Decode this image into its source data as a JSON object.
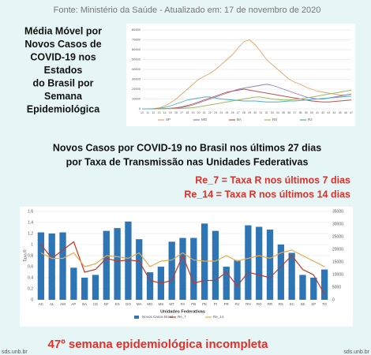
{
  "source": "Fonte: Ministério da Saúde - Atualizado em: 17 de novembro de 2020",
  "left_title": [
    "Média Móvel por",
    "Novos Casos de",
    "COVID-19 nos",
    "Estados",
    "do Brasil por",
    "Semana",
    "Epidemiológica"
  ],
  "middle_title": [
    "Novos Casos por COVID-19 no Brasil nos últimos 27 dias",
    "por Taxa de Transmissão nas Unidades Federativas"
  ],
  "notes": [
    "Re_7 = Taxa R nos últimos 7 dias",
    "Re_14 = Taxa R nos últimos 14 dias"
  ],
  "footer": "47º semana epidemiológica incompleta",
  "site": "sds.unb.br",
  "chart_data": [
    {
      "type": "line",
      "x": [
        10,
        11,
        12,
        13,
        14,
        15,
        16,
        17,
        18,
        19,
        20,
        21,
        22,
        23,
        24,
        25,
        26,
        27,
        28,
        29,
        30,
        31,
        32,
        33,
        34,
        35,
        36,
        37,
        38,
        39,
        40,
        41,
        42,
        43,
        44,
        45,
        46,
        47
      ],
      "xticks": [
        10,
        11,
        12,
        13,
        14,
        15,
        16,
        17,
        18,
        19,
        20,
        21,
        22,
        23,
        24,
        25,
        26,
        27,
        28,
        29,
        30,
        31,
        32,
        33,
        34,
        35,
        36,
        37,
        38,
        39,
        40,
        41,
        42,
        43,
        44,
        45,
        46,
        47
      ],
      "xlim": [
        10,
        47
      ],
      "ylim": [
        0,
        80000
      ],
      "yticks": [
        0,
        10000,
        20000,
        30000,
        40000,
        50000,
        60000,
        70000,
        80000
      ],
      "grid": true,
      "legend": "bottom",
      "series": [
        {
          "name": "SP",
          "color": "#e8a265",
          "values": [
            0,
            0,
            200,
            1000,
            3000,
            6000,
            10000,
            15000,
            20000,
            25000,
            30000,
            33000,
            36000,
            40000,
            45000,
            50000,
            55000,
            62000,
            68000,
            70000,
            65000,
            58000,
            50000,
            45000,
            40000,
            35000,
            30000,
            27000,
            25000,
            22000,
            20000,
            18000,
            17000,
            16000,
            15000,
            14000,
            14000,
            15000
          ]
        },
        {
          "name": "MG",
          "color": "#8e7cc3",
          "values": [
            0,
            0,
            0,
            100,
            300,
            600,
            1000,
            1500,
            2500,
            4000,
            6000,
            8000,
            10000,
            12000,
            14000,
            16000,
            18000,
            20000,
            21000,
            22000,
            23000,
            24000,
            25000,
            24000,
            22000,
            20000,
            18000,
            16000,
            14000,
            12000,
            11000,
            10000,
            10000,
            11000,
            12000,
            13000,
            14000,
            15000
          ]
        },
        {
          "name": "BA",
          "color": "#c0504d",
          "values": [
            0,
            0,
            0,
            50,
            200,
            500,
            1000,
            2000,
            3500,
            5000,
            7000,
            9000,
            11000,
            13000,
            15000,
            17000,
            18000,
            19000,
            20000,
            19000,
            18000,
            17000,
            16000,
            15000,
            14000,
            13000,
            12000,
            11000,
            10000,
            9000,
            8000,
            7500,
            7000,
            7000,
            7500,
            8000,
            8500,
            9000
          ]
        },
        {
          "name": "RS",
          "color": "#9bbb59",
          "values": [
            0,
            0,
            0,
            50,
            100,
            200,
            300,
            500,
            800,
            1200,
            2000,
            3000,
            4000,
            5000,
            6000,
            7000,
            8000,
            9000,
            10000,
            11000,
            12000,
            12000,
            11000,
            10000,
            9500,
            9000,
            9000,
            9500,
            10000,
            11000,
            12000,
            13000,
            14000,
            15000,
            16000,
            17000,
            18000,
            19000
          ]
        },
        {
          "name": "RJ",
          "color": "#4bacc6",
          "values": [
            0,
            0,
            100,
            500,
            1500,
            3000,
            5000,
            7000,
            9000,
            10000,
            11000,
            12000,
            12000,
            11000,
            10000,
            9500,
            9000,
            8500,
            8000,
            8000,
            8000,
            7500,
            7000,
            7000,
            7000,
            7500,
            8000,
            8000,
            8500,
            9000,
            9500,
            10000,
            10500,
            11000,
            11500,
            12000,
            12500,
            13000
          ]
        }
      ]
    },
    {
      "type": "bar_line",
      "xlabel": "Unidades Federativas",
      "ylabel": "Taxa R",
      "categories": [
        "AC",
        "AL",
        "AM",
        "AP",
        "BA",
        "CE",
        "DF",
        "ES",
        "GO",
        "MA",
        "MG",
        "MS",
        "MT",
        "PA",
        "PB",
        "PE",
        "PI",
        "PR",
        "RJ",
        "RN",
        "RO",
        "RR",
        "RS",
        "SC",
        "SE",
        "SP",
        "TO"
      ],
      "ylim": [
        0,
        1.6
      ],
      "yticks": [
        0,
        {
          "value": 0.2,
          "label": "0,2"
        },
        {
          "value": 0.4,
          "label": "0,4"
        },
        {
          "value": 0.6,
          "label": "0,6"
        },
        {
          "value": 0.8,
          "label": "0,8"
        },
        1,
        {
          "value": 1.2,
          "label": "1,2"
        },
        {
          "value": 1.4,
          "label": "1,4"
        },
        {
          "value": 1.6,
          "label": "1,6"
        }
      ],
      "y2lim": [
        0,
        35000
      ],
      "y2ticks": [
        0,
        5000,
        10000,
        15000,
        20000,
        25000,
        30000,
        35000
      ],
      "grid": true,
      "series": [
        {
          "name": "Novos Casos Brasil",
          "color": "#2e75b6",
          "axis": "y2",
          "kind": "bar",
          "values": [
            26700,
            26250,
            26700,
            12700,
            8750,
            9850,
            27300,
            28400,
            31000,
            24000,
            10900,
            13100,
            23000,
            24500,
            24500,
            30200,
            27300,
            13100,
            15700,
            29500,
            28900,
            27800,
            21900,
            18600,
            9850,
            8750,
            12000
          ]
        },
        {
          "name": "Re_7",
          "color": "#c0392b",
          "kind": "line",
          "values": [
            1.0,
            0.75,
            0.9,
            1.05,
            0.5,
            0.55,
            0.75,
            0.7,
            0.72,
            0.7,
            0.35,
            0.3,
            0.35,
            0.8,
            0.3,
            0.35,
            0.35,
            0.5,
            0.25,
            0.5,
            0.45,
            0.4,
            0.6,
            0.8,
            0.55,
            0.45,
            0.1
          ]
        },
        {
          "name": "Re_14",
          "color": "#e8a84a",
          "kind": "line",
          "values": [
            0.85,
            0.75,
            0.75,
            0.85,
            0.6,
            0.65,
            0.8,
            0.78,
            0.75,
            0.85,
            0.6,
            0.7,
            0.72,
            0.85,
            0.72,
            0.7,
            0.7,
            0.8,
            0.7,
            0.75,
            0.8,
            0.75,
            0.85,
            0.9,
            0.8,
            0.7,
            0.6
          ]
        }
      ]
    }
  ]
}
